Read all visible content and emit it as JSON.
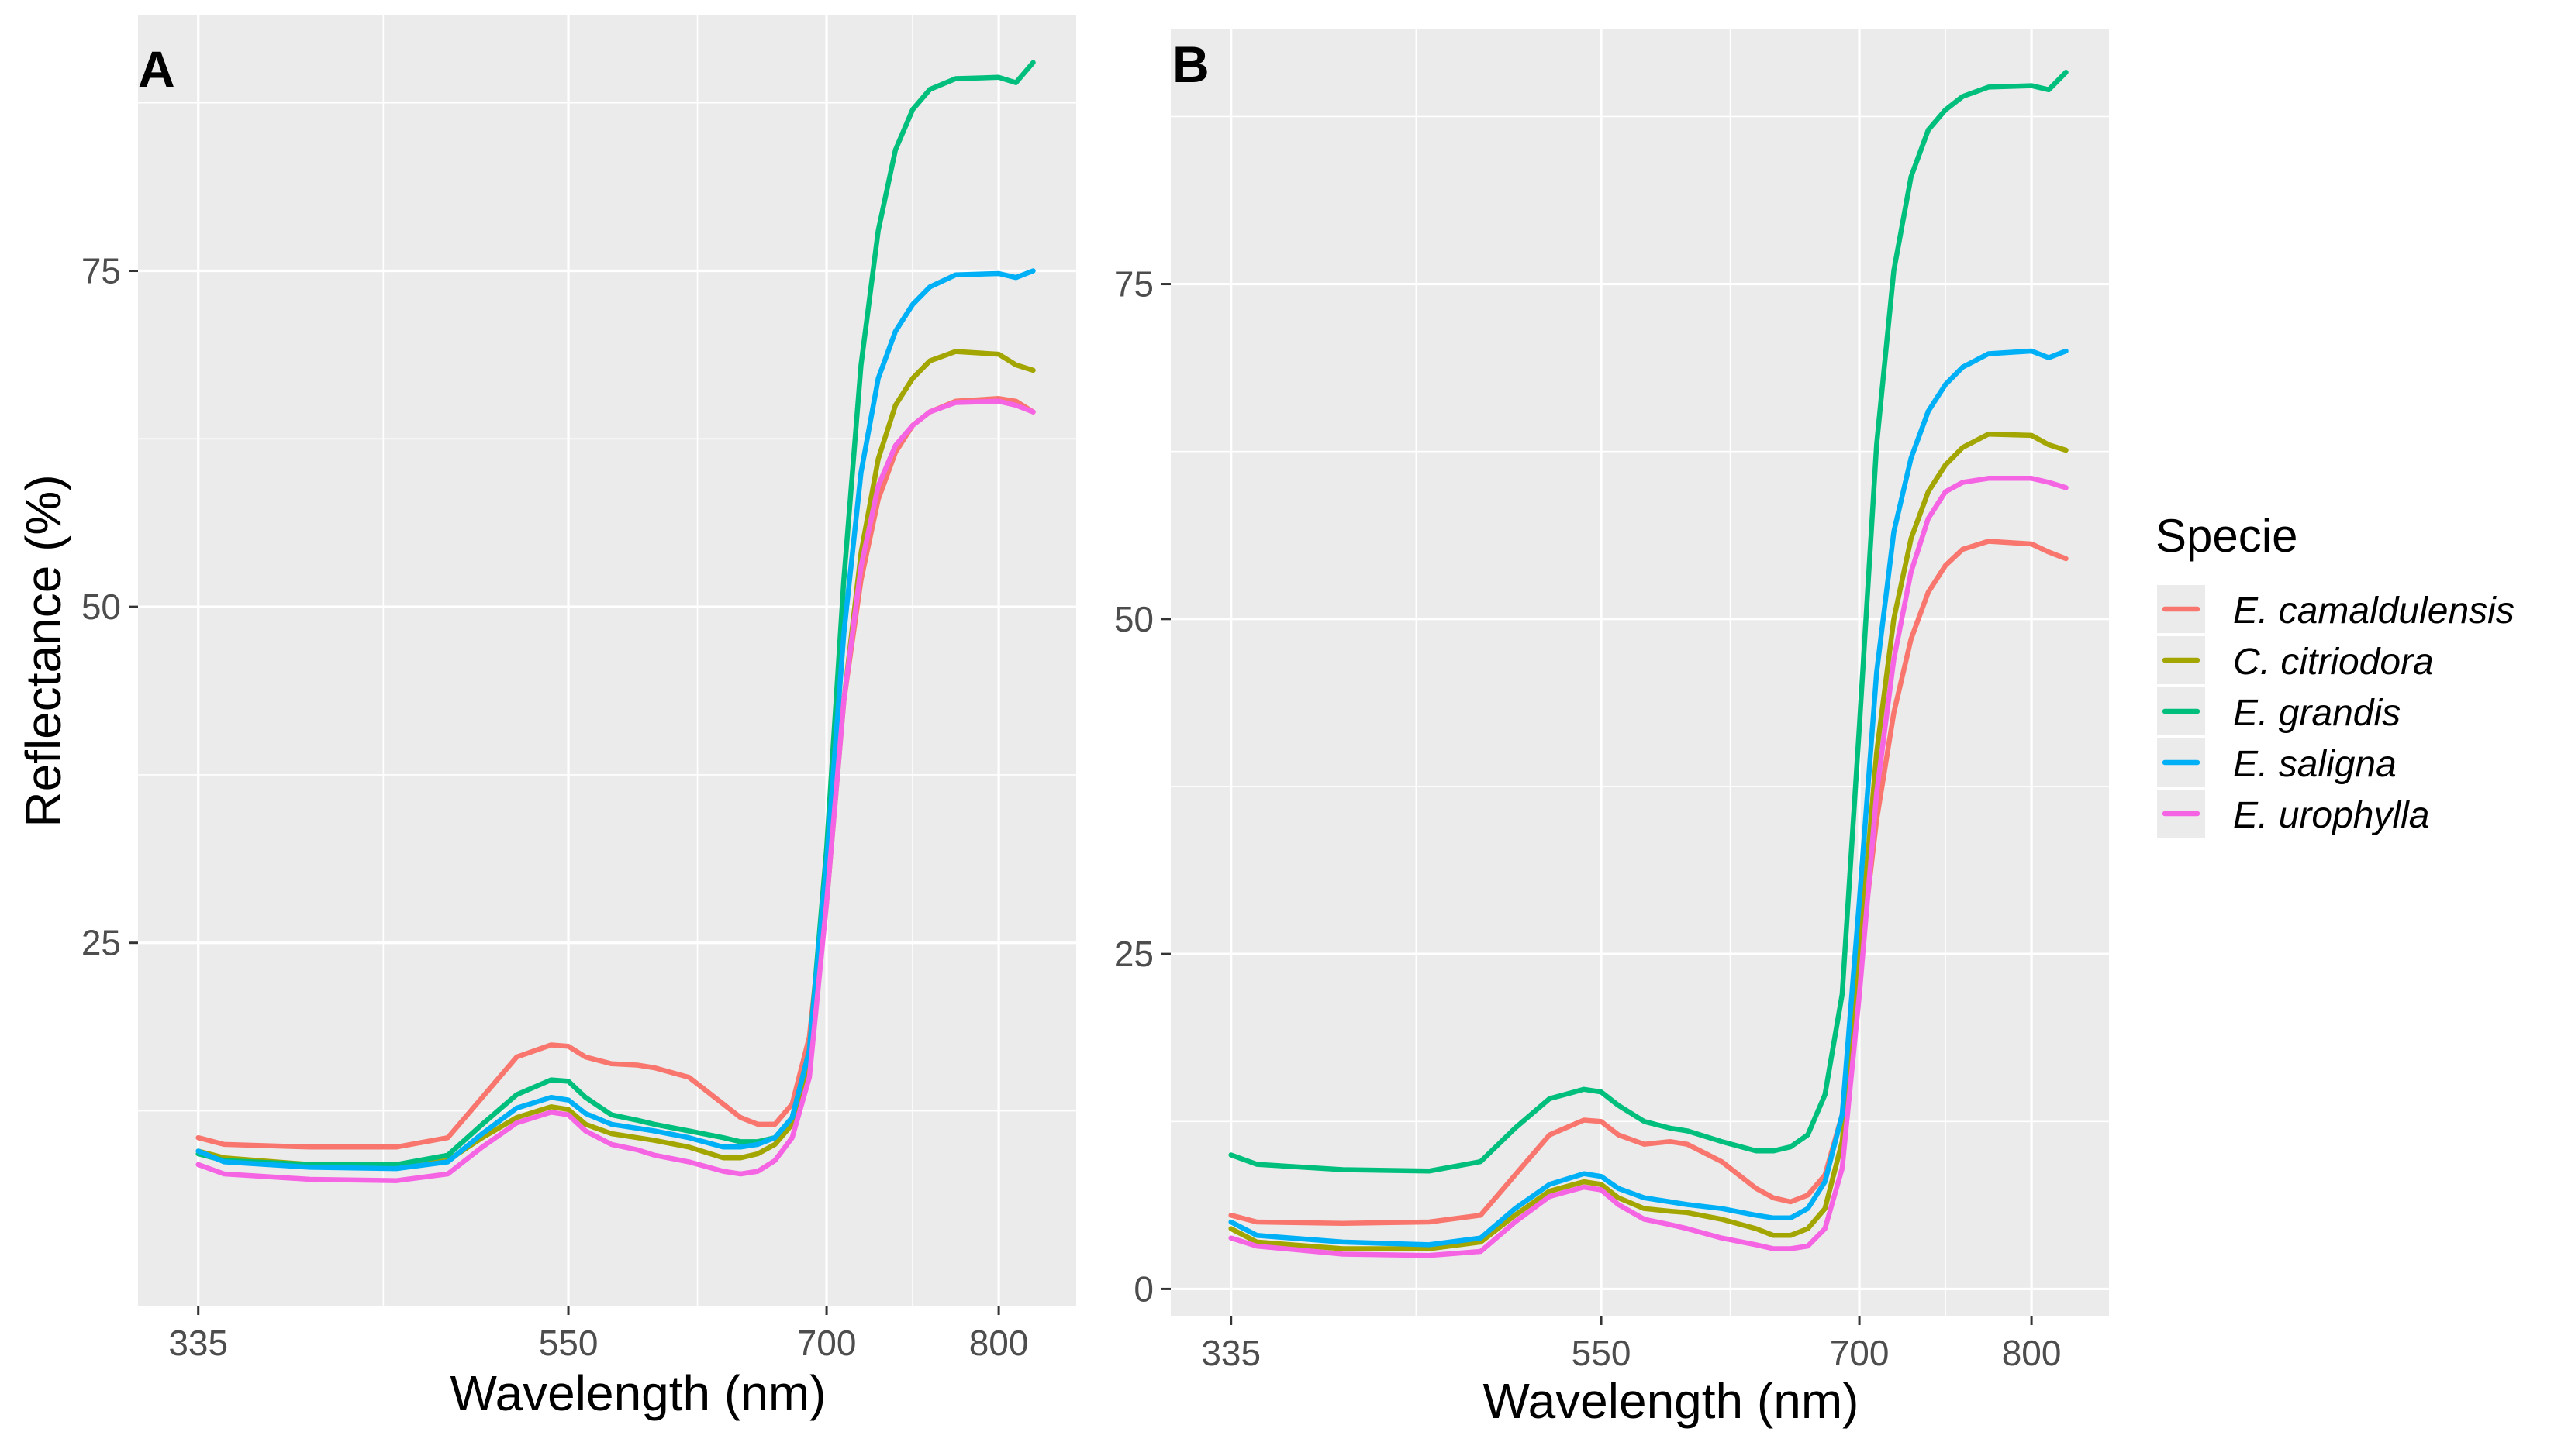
{
  "chart_data": [
    {
      "panel": "A",
      "type": "line",
      "xlabel": "Wavelength (nm)",
      "ylabel": "Reflectance (%)",
      "xlim": [
        300,
        845
      ],
      "ylim": [
        -2,
        94
      ],
      "xticks": [
        335,
        550,
        700,
        800
      ],
      "yticks": [
        25,
        50,
        75
      ],
      "x": [
        335,
        350,
        400,
        450,
        480,
        500,
        520,
        540,
        550,
        560,
        575,
        590,
        600,
        620,
        640,
        650,
        660,
        670,
        680,
        690,
        700,
        710,
        720,
        730,
        740,
        750,
        760,
        775,
        800,
        810,
        820
      ],
      "series": [
        {
          "name": "E. camaldulensis",
          "color": "#F8766D",
          "values": [
            10.5,
            10.0,
            9.8,
            9.8,
            10.5,
            13.5,
            16.5,
            17.4,
            17.3,
            16.5,
            16.0,
            15.9,
            15.7,
            15.0,
            13.0,
            12.0,
            11.5,
            11.5,
            13.0,
            18.0,
            30.0,
            43.0,
            52.0,
            58.0,
            61.5,
            63.5,
            64.5,
            65.3,
            65.5,
            65.3,
            64.5
          ]
        },
        {
          "name": "C. citriodora",
          "color": "#A3A500",
          "values": [
            9.5,
            9.0,
            8.5,
            8.3,
            8.8,
            10.5,
            12.0,
            12.8,
            12.6,
            11.5,
            10.8,
            10.5,
            10.3,
            9.8,
            9.0,
            9.0,
            9.3,
            10.0,
            11.5,
            16.0,
            28.0,
            43.0,
            54.0,
            61.0,
            65.0,
            67.0,
            68.3,
            69.0,
            68.8,
            68.0,
            67.6
          ]
        },
        {
          "name": "E. grandis",
          "color": "#00BF7D",
          "values": [
            9.3,
            8.8,
            8.5,
            8.5,
            9.2,
            11.5,
            13.7,
            14.8,
            14.7,
            13.5,
            12.2,
            11.8,
            11.5,
            11.0,
            10.5,
            10.2,
            10.2,
            10.5,
            12.0,
            17.0,
            32.0,
            52.0,
            68.0,
            78.0,
            84.0,
            87.0,
            88.5,
            89.3,
            89.4,
            89.0,
            90.5
          ]
        },
        {
          "name": "E. saligna",
          "color": "#00B0F6",
          "values": [
            9.5,
            8.7,
            8.3,
            8.2,
            8.7,
            10.8,
            12.7,
            13.5,
            13.3,
            12.3,
            11.5,
            11.2,
            11.0,
            10.5,
            9.8,
            9.8,
            10.0,
            10.5,
            12.0,
            17.0,
            31.0,
            48.0,
            60.0,
            67.0,
            70.5,
            72.5,
            73.8,
            74.7,
            74.8,
            74.5,
            75.0
          ]
        },
        {
          "name": "E. urophylla",
          "color": "#F564E3",
          "values": [
            8.5,
            7.8,
            7.4,
            7.3,
            7.8,
            9.8,
            11.6,
            12.4,
            12.2,
            11.0,
            10.0,
            9.6,
            9.2,
            8.7,
            8.0,
            7.8,
            8.0,
            8.8,
            10.5,
            15.0,
            28.0,
            43.0,
            53.0,
            59.0,
            62.0,
            63.5,
            64.5,
            65.2,
            65.3,
            65.0,
            64.5
          ]
        }
      ]
    },
    {
      "panel": "B",
      "type": "line",
      "xlabel": "Wavelength (nm)",
      "ylabel": "",
      "xlim": [
        300,
        845
      ],
      "ylim": [
        -2,
        94
      ],
      "xticks": [
        335,
        550,
        700,
        800
      ],
      "yticks": [
        0,
        25,
        50,
        75
      ],
      "x": [
        335,
        350,
        400,
        450,
        480,
        500,
        520,
        540,
        550,
        560,
        575,
        590,
        600,
        620,
        640,
        650,
        660,
        670,
        680,
        690,
        700,
        710,
        720,
        730,
        740,
        750,
        760,
        775,
        800,
        810,
        820
      ],
      "series": [
        {
          "name": "E. camaldulensis",
          "color": "#F8766D",
          "values": [
            5.5,
            5.0,
            4.9,
            5.0,
            5.5,
            8.5,
            11.5,
            12.6,
            12.5,
            11.5,
            10.8,
            11.0,
            10.8,
            9.5,
            7.5,
            6.8,
            6.5,
            7.0,
            8.5,
            13.0,
            24.0,
            35.0,
            43.0,
            48.5,
            52.0,
            54.0,
            55.2,
            55.8,
            55.6,
            55.0,
            54.5
          ]
        },
        {
          "name": "C. citriodora",
          "color": "#A3A500",
          "values": [
            4.5,
            3.5,
            3.0,
            3.0,
            3.5,
            5.5,
            7.3,
            8.0,
            7.8,
            6.8,
            6.0,
            5.8,
            5.7,
            5.2,
            4.5,
            4.0,
            4.0,
            4.5,
            6.0,
            11.0,
            25.0,
            40.0,
            50.0,
            56.0,
            59.5,
            61.5,
            62.8,
            63.8,
            63.7,
            63.0,
            62.6
          ]
        },
        {
          "name": "E. grandis",
          "color": "#00BF7D",
          "values": [
            10.0,
            9.3,
            8.9,
            8.8,
            9.5,
            12.0,
            14.2,
            14.9,
            14.7,
            13.7,
            12.5,
            12.0,
            11.8,
            11.0,
            10.3,
            10.3,
            10.6,
            11.5,
            14.5,
            22.0,
            42.0,
            63.0,
            76.0,
            83.0,
            86.5,
            88.0,
            89.0,
            89.7,
            89.8,
            89.5,
            90.8
          ]
        },
        {
          "name": "E. saligna",
          "color": "#00B0F6",
          "values": [
            5.0,
            4.0,
            3.5,
            3.3,
            3.8,
            6.0,
            7.8,
            8.6,
            8.4,
            7.5,
            6.8,
            6.5,
            6.3,
            6.0,
            5.5,
            5.3,
            5.3,
            6.0,
            8.0,
            13.0,
            29.0,
            46.0,
            56.5,
            62.0,
            65.5,
            67.5,
            68.8,
            69.8,
            70.0,
            69.5,
            70.0
          ]
        },
        {
          "name": "E. urophylla",
          "color": "#F564E3",
          "values": [
            3.8,
            3.2,
            2.6,
            2.5,
            2.8,
            5.0,
            6.9,
            7.6,
            7.4,
            6.3,
            5.2,
            4.8,
            4.5,
            3.8,
            3.3,
            3.0,
            3.0,
            3.2,
            4.5,
            9.0,
            22.0,
            37.0,
            47.0,
            53.5,
            57.5,
            59.5,
            60.2,
            60.5,
            60.5,
            60.2,
            59.8
          ]
        }
      ]
    }
  ],
  "legend": {
    "title": "Specie",
    "items": [
      "E. camaldulensis",
      "C. citriodora",
      "E. grandis",
      "E. saligna",
      "E. urophylla"
    ],
    "colors": [
      "#F8766D",
      "#A3A500",
      "#00BF7D",
      "#00B0F6",
      "#F564E3"
    ]
  }
}
